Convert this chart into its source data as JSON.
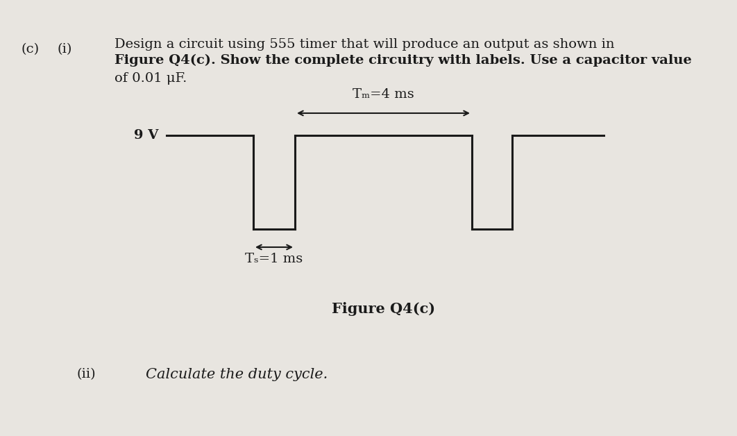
{
  "background_color": "#e8e5e0",
  "title_c": "(c)",
  "title_i": "(i)",
  "title_ii": "(ii)",
  "question_line1": "Design a circuit using 555 timer that will produce an output as shown in",
  "question_line2": "Figure Q4(c). Show the complete circuitry with labels. Use a capacitor value",
  "question_line3": "of 0.01 μF.",
  "figure_label": "Figure Q4(c)",
  "duty_cycle_text": "Calculate the duty cycle.",
  "voltage_label": "9 V",
  "Tm_label": "Tₘ=4 ms",
  "Ts_label": "Tₛ=1 ms",
  "waveform_color": "#1a1a1a",
  "text_color": "#1a1a1a",
  "Ts": 1,
  "Tm": 4
}
